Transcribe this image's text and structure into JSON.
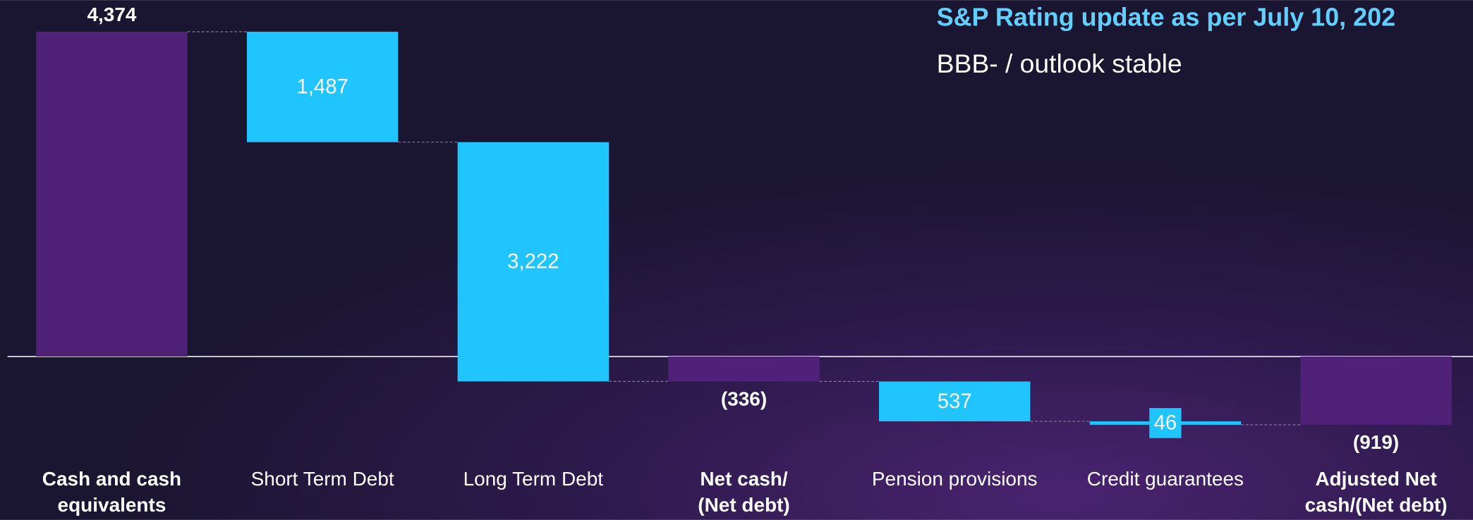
{
  "chart_data": {
    "type": "waterfall",
    "title": "S&P Rating update as per July 10, 202",
    "subtitle": "BBB- / outlook stable",
    "categories": [
      [
        "Cash and cash",
        "equivalents"
      ],
      [
        "Short Term Debt"
      ],
      [
        "Long Term Debt"
      ],
      [
        "Net cash/",
        "(Net debt)"
      ],
      [
        "Pension provisions"
      ],
      [
        "Credit guarantees"
      ],
      [
        "Adjusted Net",
        "cash/(Net debt)"
      ]
    ],
    "measure": [
      "total",
      "relative",
      "relative",
      "total",
      "relative",
      "relative",
      "total"
    ],
    "values": [
      4374,
      -1487,
      -3222,
      -336,
      -537,
      -46,
      -919
    ],
    "value_labels": [
      "4,374",
      "1,487",
      "3,222",
      "(336)",
      "537",
      "46",
      "(919)"
    ],
    "total_color": "#4f2278",
    "relative_color": "#20c4ff",
    "ylim": [
      -2200,
      4800
    ]
  }
}
